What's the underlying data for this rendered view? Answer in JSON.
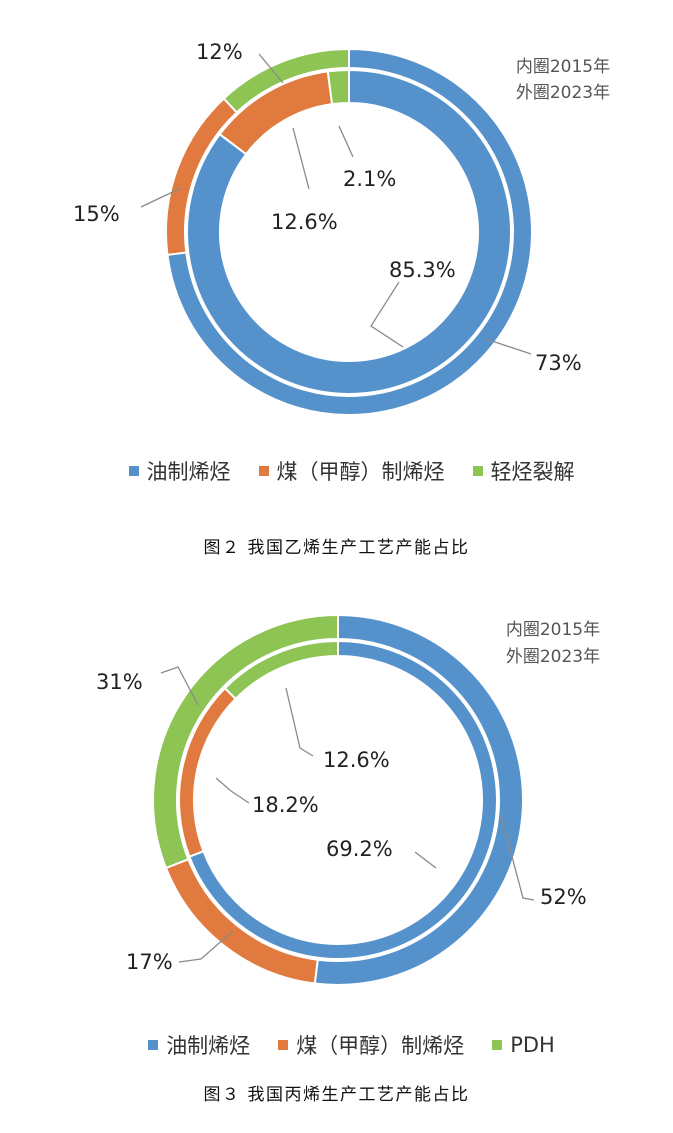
{
  "colors": {
    "oil": "#5592CB",
    "coal": "#E07A3F",
    "third": "#8DC453",
    "leader": "#8a8a8a"
  },
  "chart_data": [
    {
      "type": "donut",
      "note_lines": [
        "内圈2015年",
        "外圈2023年"
      ],
      "legend": [
        "油制烯烃",
        "煤（甲醇）制烯烃",
        "轻烃裂解"
      ],
      "series": [
        {
          "name": "内圈2015年",
          "values": [
            85.3,
            12.6,
            2.1
          ],
          "labels": [
            "85.3%",
            "12.6%",
            "2.1%"
          ]
        },
        {
          "name": "外圈2023年",
          "values": [
            73,
            15,
            12
          ],
          "labels": [
            "73%",
            "15%",
            "12%"
          ]
        }
      ],
      "caption": "图２ 我国乙烯生产工艺产能占比"
    },
    {
      "type": "donut",
      "note_lines": [
        "内圈2015年",
        "外圈2023年"
      ],
      "legend": [
        "油制烯烃",
        "煤（甲醇）制烯烃",
        "PDH"
      ],
      "series": [
        {
          "name": "内圈2015年",
          "values": [
            69.2,
            18.2,
            12.6
          ],
          "labels": [
            "69.2%",
            "18.2%",
            "12.6%"
          ]
        },
        {
          "name": "外圈2023年",
          "values": [
            52,
            17,
            31
          ],
          "labels": [
            "52%",
            "17%",
            "31%"
          ]
        }
      ],
      "caption": "图３ 我国丙烯生产工艺产能占比"
    }
  ]
}
